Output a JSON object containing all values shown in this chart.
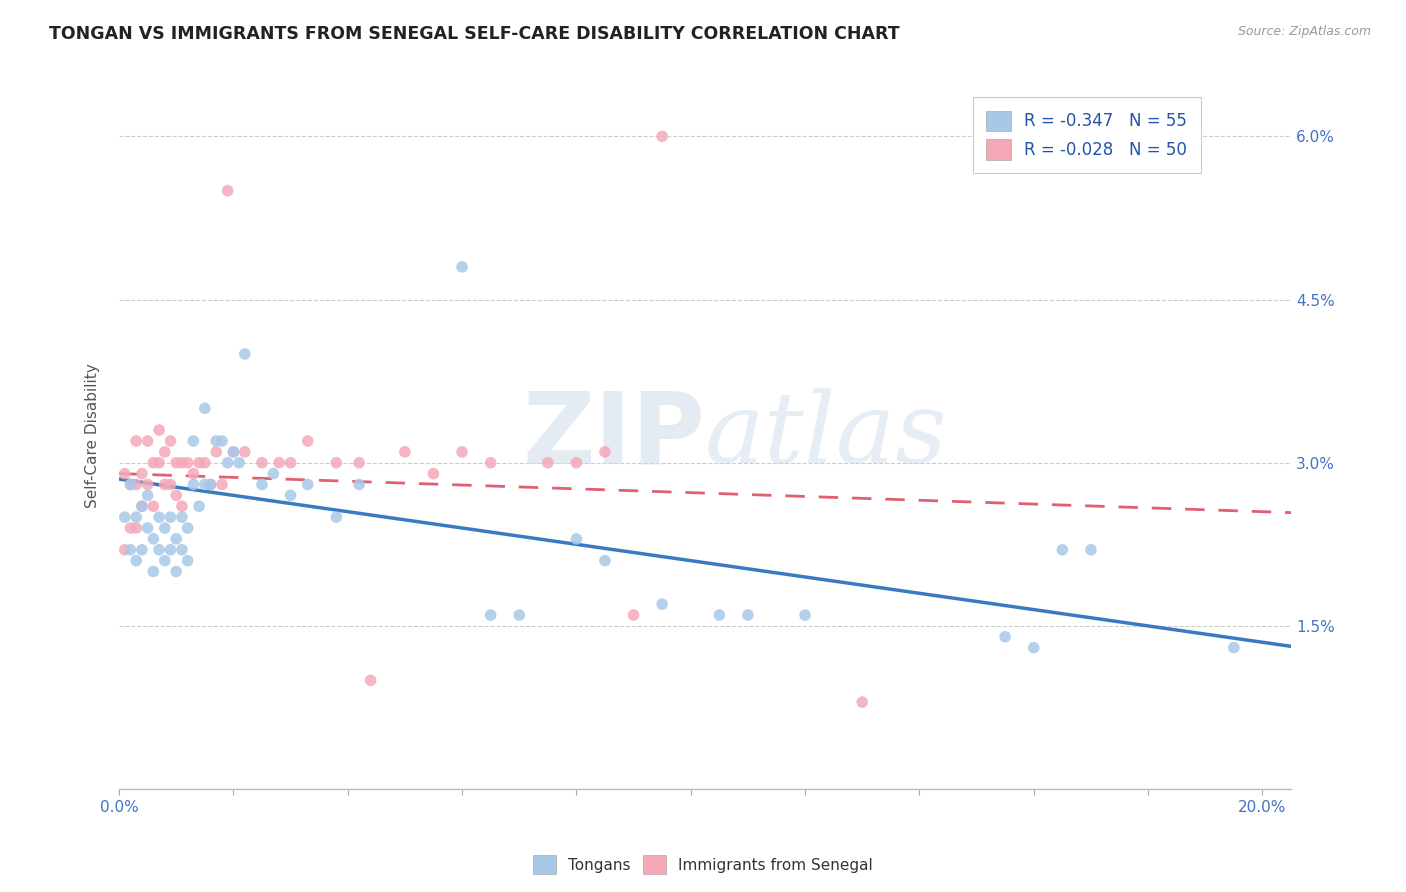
{
  "title": "TONGAN VS IMMIGRANTS FROM SENEGAL SELF-CARE DISABILITY CORRELATION CHART",
  "source": "Source: ZipAtlas.com",
  "ylabel": "Self-Care Disability",
  "xlim": [
    0.0,
    0.205
  ],
  "ylim": [
    0.0,
    0.065
  ],
  "color_tongan": "#a8c8e8",
  "color_senegal": "#f4a8b8",
  "line_color_tongan": "#3a7abf",
  "line_color_senegal": "#e06070",
  "background_color": "#ffffff",
  "grid_color": "#cccccc",
  "watermark_zip": "ZIP",
  "watermark_atlas": "atlas",
  "legend_r1": "-0.347",
  "legend_n1": "55",
  "legend_r2": "-0.028",
  "legend_n2": "50",
  "tongan_x": [
    0.001,
    0.002,
    0.002,
    0.003,
    0.003,
    0.004,
    0.004,
    0.005,
    0.005,
    0.006,
    0.006,
    0.007,
    0.007,
    0.008,
    0.008,
    0.009,
    0.009,
    0.01,
    0.01,
    0.011,
    0.011,
    0.012,
    0.012,
    0.013,
    0.013,
    0.014,
    0.015,
    0.015,
    0.016,
    0.017,
    0.018,
    0.019,
    0.02,
    0.021,
    0.022,
    0.025,
    0.027,
    0.03,
    0.033,
    0.038,
    0.042,
    0.06,
    0.065,
    0.07,
    0.08,
    0.085,
    0.095,
    0.105,
    0.11,
    0.12,
    0.155,
    0.16,
    0.165,
    0.17,
    0.195
  ],
  "tongan_y": [
    0.025,
    0.022,
    0.028,
    0.021,
    0.025,
    0.022,
    0.026,
    0.024,
    0.027,
    0.02,
    0.023,
    0.022,
    0.025,
    0.021,
    0.024,
    0.022,
    0.025,
    0.02,
    0.023,
    0.022,
    0.025,
    0.021,
    0.024,
    0.028,
    0.032,
    0.026,
    0.035,
    0.028,
    0.028,
    0.032,
    0.032,
    0.03,
    0.031,
    0.03,
    0.04,
    0.028,
    0.029,
    0.027,
    0.028,
    0.025,
    0.028,
    0.048,
    0.016,
    0.016,
    0.023,
    0.021,
    0.017,
    0.016,
    0.016,
    0.016,
    0.014,
    0.013,
    0.022,
    0.022,
    0.013
  ],
  "senegal_x": [
    0.001,
    0.001,
    0.002,
    0.002,
    0.003,
    0.003,
    0.003,
    0.004,
    0.004,
    0.005,
    0.005,
    0.006,
    0.006,
    0.007,
    0.007,
    0.008,
    0.008,
    0.009,
    0.009,
    0.01,
    0.01,
    0.011,
    0.011,
    0.012,
    0.013,
    0.014,
    0.015,
    0.016,
    0.017,
    0.018,
    0.019,
    0.02,
    0.022,
    0.025,
    0.028,
    0.03,
    0.033,
    0.038,
    0.042,
    0.044,
    0.05,
    0.055,
    0.06,
    0.065,
    0.075,
    0.08,
    0.085,
    0.09,
    0.095,
    0.13
  ],
  "senegal_y": [
    0.029,
    0.022,
    0.028,
    0.024,
    0.028,
    0.024,
    0.032,
    0.026,
    0.029,
    0.028,
    0.032,
    0.026,
    0.03,
    0.03,
    0.033,
    0.028,
    0.031,
    0.028,
    0.032,
    0.027,
    0.03,
    0.026,
    0.03,
    0.03,
    0.029,
    0.03,
    0.03,
    0.028,
    0.031,
    0.028,
    0.055,
    0.031,
    0.031,
    0.03,
    0.03,
    0.03,
    0.032,
    0.03,
    0.03,
    0.01,
    0.031,
    0.029,
    0.031,
    0.03,
    0.03,
    0.03,
    0.031,
    0.016,
    0.06,
    0.008
  ]
}
